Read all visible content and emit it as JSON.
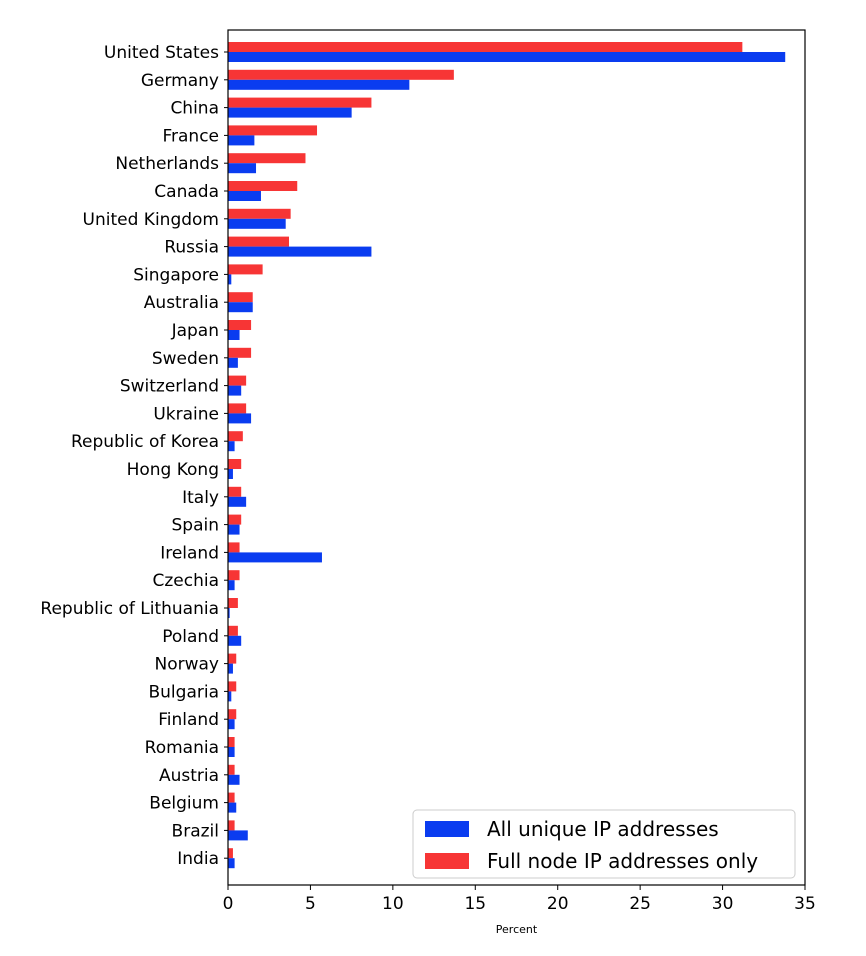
{
  "chart_data": {
    "type": "bar",
    "orientation": "horizontal",
    "title": "",
    "xlabel": "Percent",
    "ylabel": "",
    "xlim": [
      0,
      35
    ],
    "xticks": [
      0,
      5,
      10,
      15,
      20,
      25,
      30,
      35
    ],
    "grid": false,
    "legend_position": "bottom-right",
    "categories": [
      "United States",
      "Germany",
      "China",
      "France",
      "Netherlands",
      "Canada",
      "United Kingdom",
      "Russia",
      "Singapore",
      "Australia",
      "Japan",
      "Sweden",
      "Switzerland",
      "Ukraine",
      "Republic of Korea",
      "Hong Kong",
      "Italy",
      "Spain",
      "Ireland",
      "Czechia",
      "Republic of Lithuania",
      "Poland",
      "Norway",
      "Bulgaria",
      "Finland",
      "Romania",
      "Austria",
      "Belgium",
      "Brazil",
      "India"
    ],
    "series": [
      {
        "name": "All unique IP addresses",
        "color": "#0a3cf0",
        "values": [
          33.8,
          11.0,
          7.5,
          1.6,
          1.7,
          2.0,
          3.5,
          8.7,
          0.2,
          1.5,
          0.7,
          0.6,
          0.8,
          1.4,
          0.4,
          0.3,
          1.1,
          0.7,
          5.7,
          0.4,
          0.1,
          0.8,
          0.3,
          0.2,
          0.4,
          0.4,
          0.7,
          0.5,
          1.2,
          0.4
        ]
      },
      {
        "name": "Full node IP addresses only",
        "color": "#f73535",
        "values": [
          31.2,
          13.7,
          8.7,
          5.4,
          4.7,
          4.2,
          3.8,
          3.7,
          2.1,
          1.5,
          1.4,
          1.4,
          1.1,
          1.1,
          0.9,
          0.8,
          0.8,
          0.8,
          0.7,
          0.7,
          0.6,
          0.6,
          0.5,
          0.5,
          0.5,
          0.4,
          0.4,
          0.4,
          0.4,
          0.3
        ]
      }
    ]
  }
}
